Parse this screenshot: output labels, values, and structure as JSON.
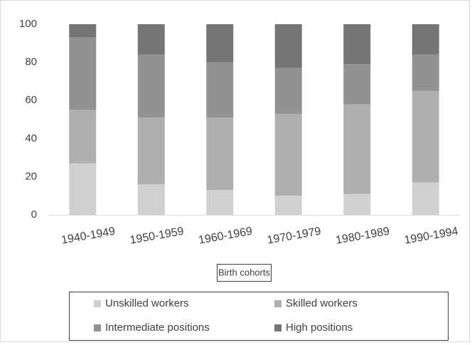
{
  "chart_data": {
    "type": "stacked_bar",
    "x_label": "Birth cohorts",
    "categories": [
      "1940-1949",
      "1950-1959",
      "1960-1969",
      "1970-1979",
      "1980-1989",
      "1990-1994"
    ],
    "series": [
      {
        "name": "Unskilled workers",
        "color": "#d0d0d0",
        "values": [
          27,
          16,
          13,
          10,
          11,
          17
        ]
      },
      {
        "name": "Skilled workers",
        "color": "#afafaf",
        "values": [
          28,
          35,
          38,
          43,
          47,
          48
        ]
      },
      {
        "name": "Intermediate positions",
        "color": "#929292",
        "values": [
          38,
          33,
          29,
          24,
          21,
          19
        ]
      },
      {
        "name": "High positions",
        "color": "#757575",
        "values": [
          7,
          16,
          20,
          23,
          21,
          16
        ]
      }
    ],
    "ylim": [
      0,
      100
    ],
    "yticks": [
      0,
      20,
      40,
      60,
      80,
      100
    ],
    "grid": false,
    "legend": "bottom"
  }
}
